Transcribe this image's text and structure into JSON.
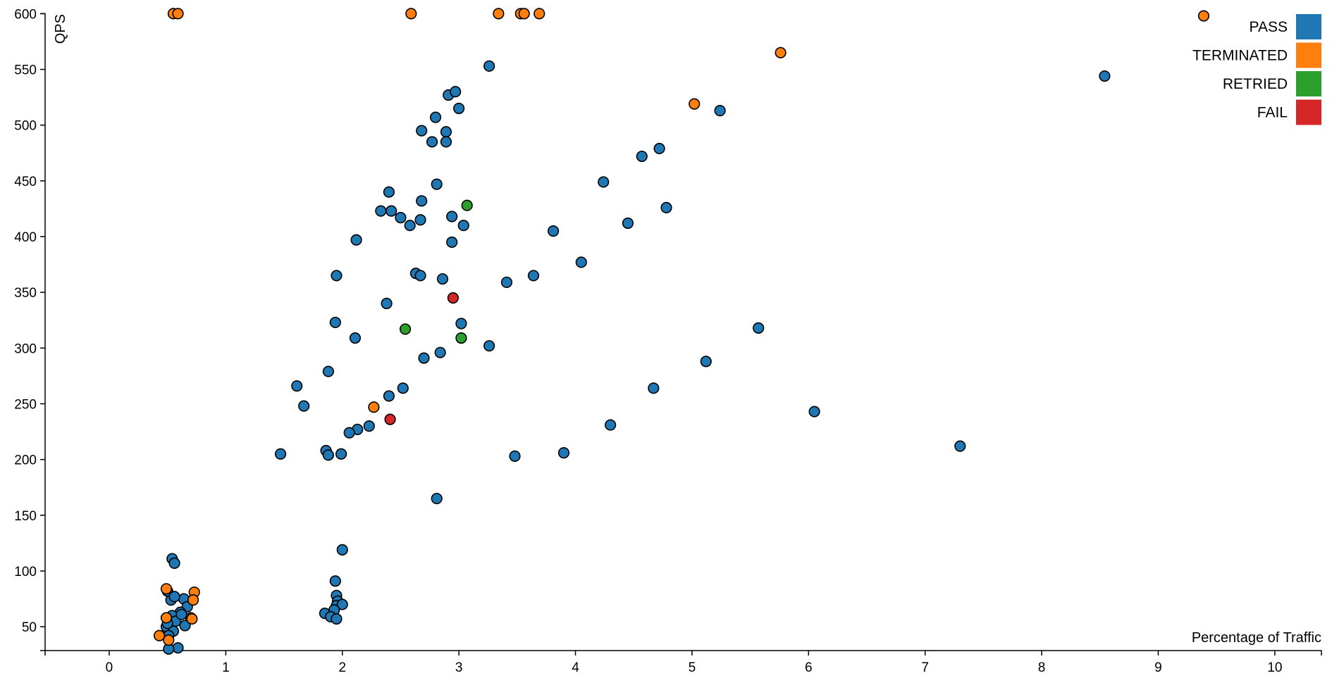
{
  "chart_data": {
    "type": "scatter",
    "xlabel": "Percentage of Traffic",
    "ylabel": "QPS",
    "xlim": [
      -0.55,
      10.4
    ],
    "ylim": [
      28.6,
      600
    ],
    "xticks": [
      "0",
      "1",
      "2",
      "3",
      "4",
      "5",
      "6",
      "7",
      "8",
      "9",
      "10"
    ],
    "yticks": [
      "50",
      "100",
      "150",
      "200",
      "250",
      "300",
      "350",
      "400",
      "450",
      "500",
      "550",
      "600"
    ],
    "grid": false,
    "legend_position": "top-right",
    "series": [
      {
        "name": "PASS",
        "color": "#1f77b4",
        "points": [
          [
            3.26,
            553
          ],
          [
            8.54,
            544
          ],
          [
            5.24,
            513
          ],
          [
            2.91,
            527
          ],
          [
            2.97,
            530
          ],
          [
            3.0,
            515
          ],
          [
            2.8,
            507
          ],
          [
            2.68,
            495
          ],
          [
            2.89,
            494
          ],
          [
            2.77,
            485
          ],
          [
            2.89,
            485
          ],
          [
            4.72,
            479
          ],
          [
            4.57,
            472
          ],
          [
            4.24,
            449
          ],
          [
            2.81,
            447
          ],
          [
            2.4,
            440
          ],
          [
            2.68,
            432
          ],
          [
            2.33,
            423
          ],
          [
            2.42,
            423
          ],
          [
            4.78,
            426
          ],
          [
            2.5,
            417
          ],
          [
            2.94,
            418
          ],
          [
            2.67,
            415
          ],
          [
            2.58,
            410
          ],
          [
            3.04,
            410
          ],
          [
            4.45,
            412
          ],
          [
            3.81,
            405
          ],
          [
            2.12,
            397
          ],
          [
            2.94,
            395
          ],
          [
            4.05,
            377
          ],
          [
            1.95,
            365
          ],
          [
            2.63,
            367
          ],
          [
            2.67,
            365
          ],
          [
            2.86,
            362
          ],
          [
            3.41,
            359
          ],
          [
            3.64,
            365
          ],
          [
            2.38,
            340
          ],
          [
            1.94,
            323
          ],
          [
            3.02,
            322
          ],
          [
            5.57,
            318
          ],
          [
            2.11,
            309
          ],
          [
            3.26,
            302
          ],
          [
            2.84,
            296
          ],
          [
            2.7,
            291
          ],
          [
            5.12,
            288
          ],
          [
            1.88,
            279
          ],
          [
            1.61,
            266
          ],
          [
            2.52,
            264
          ],
          [
            4.67,
            264
          ],
          [
            2.4,
            257
          ],
          [
            1.67,
            248
          ],
          [
            6.05,
            243
          ],
          [
            2.23,
            230
          ],
          [
            4.3,
            231
          ],
          [
            2.13,
            227
          ],
          [
            2.06,
            224
          ],
          [
            7.3,
            212
          ],
          [
            3.9,
            206
          ],
          [
            1.47,
            205
          ],
          [
            1.86,
            208
          ],
          [
            1.88,
            204
          ],
          [
            1.99,
            205
          ],
          [
            3.48,
            203
          ],
          [
            2.81,
            165
          ],
          [
            2.0,
            119
          ],
          [
            1.94,
            91
          ],
          [
            1.95,
            78
          ],
          [
            1.96,
            73
          ],
          [
            1.95,
            69
          ],
          [
            2.0,
            70
          ],
          [
            1.93,
            65
          ],
          [
            1.85,
            62
          ],
          [
            1.9,
            59
          ],
          [
            1.95,
            57
          ],
          [
            0.54,
            111
          ],
          [
            0.56,
            107
          ],
          [
            0.53,
            74
          ],
          [
            0.64,
            75
          ],
          [
            0.67,
            68
          ],
          [
            0.61,
            63
          ],
          [
            0.54,
            60
          ],
          [
            0.7,
            58
          ],
          [
            0.57,
            55
          ],
          [
            0.65,
            51
          ],
          [
            0.49,
            50
          ],
          [
            0.55,
            46
          ],
          [
            0.51,
            42
          ],
          [
            0.59,
            31
          ],
          [
            0.51,
            30
          ],
          [
            0.5,
            82
          ],
          [
            0.62,
            61
          ],
          [
            0.56,
            77
          ],
          [
            0.5,
            53
          ]
        ]
      },
      {
        "name": "TERMINATED",
        "color": "#ff7f0e",
        "points": [
          [
            0.55,
            600
          ],
          [
            0.59,
            600
          ],
          [
            2.59,
            600
          ],
          [
            3.34,
            600
          ],
          [
            3.53,
            600
          ],
          [
            3.56,
            600
          ],
          [
            3.69,
            600
          ],
          [
            9.39,
            598
          ],
          [
            5.76,
            565
          ],
          [
            5.02,
            519
          ],
          [
            2.27,
            247
          ],
          [
            0.49,
            84
          ],
          [
            0.73,
            81
          ],
          [
            0.72,
            74
          ],
          [
            0.49,
            58
          ],
          [
            0.71,
            57
          ],
          [
            0.43,
            42
          ],
          [
            0.51,
            38
          ]
        ]
      },
      {
        "name": "RETRIED",
        "color": "#2ca02c",
        "points": [
          [
            3.07,
            428
          ],
          [
            2.54,
            317
          ],
          [
            3.02,
            309
          ]
        ]
      },
      {
        "name": "FAIL",
        "color": "#d62728",
        "points": [
          [
            2.95,
            345
          ],
          [
            2.41,
            236
          ]
        ]
      }
    ]
  }
}
